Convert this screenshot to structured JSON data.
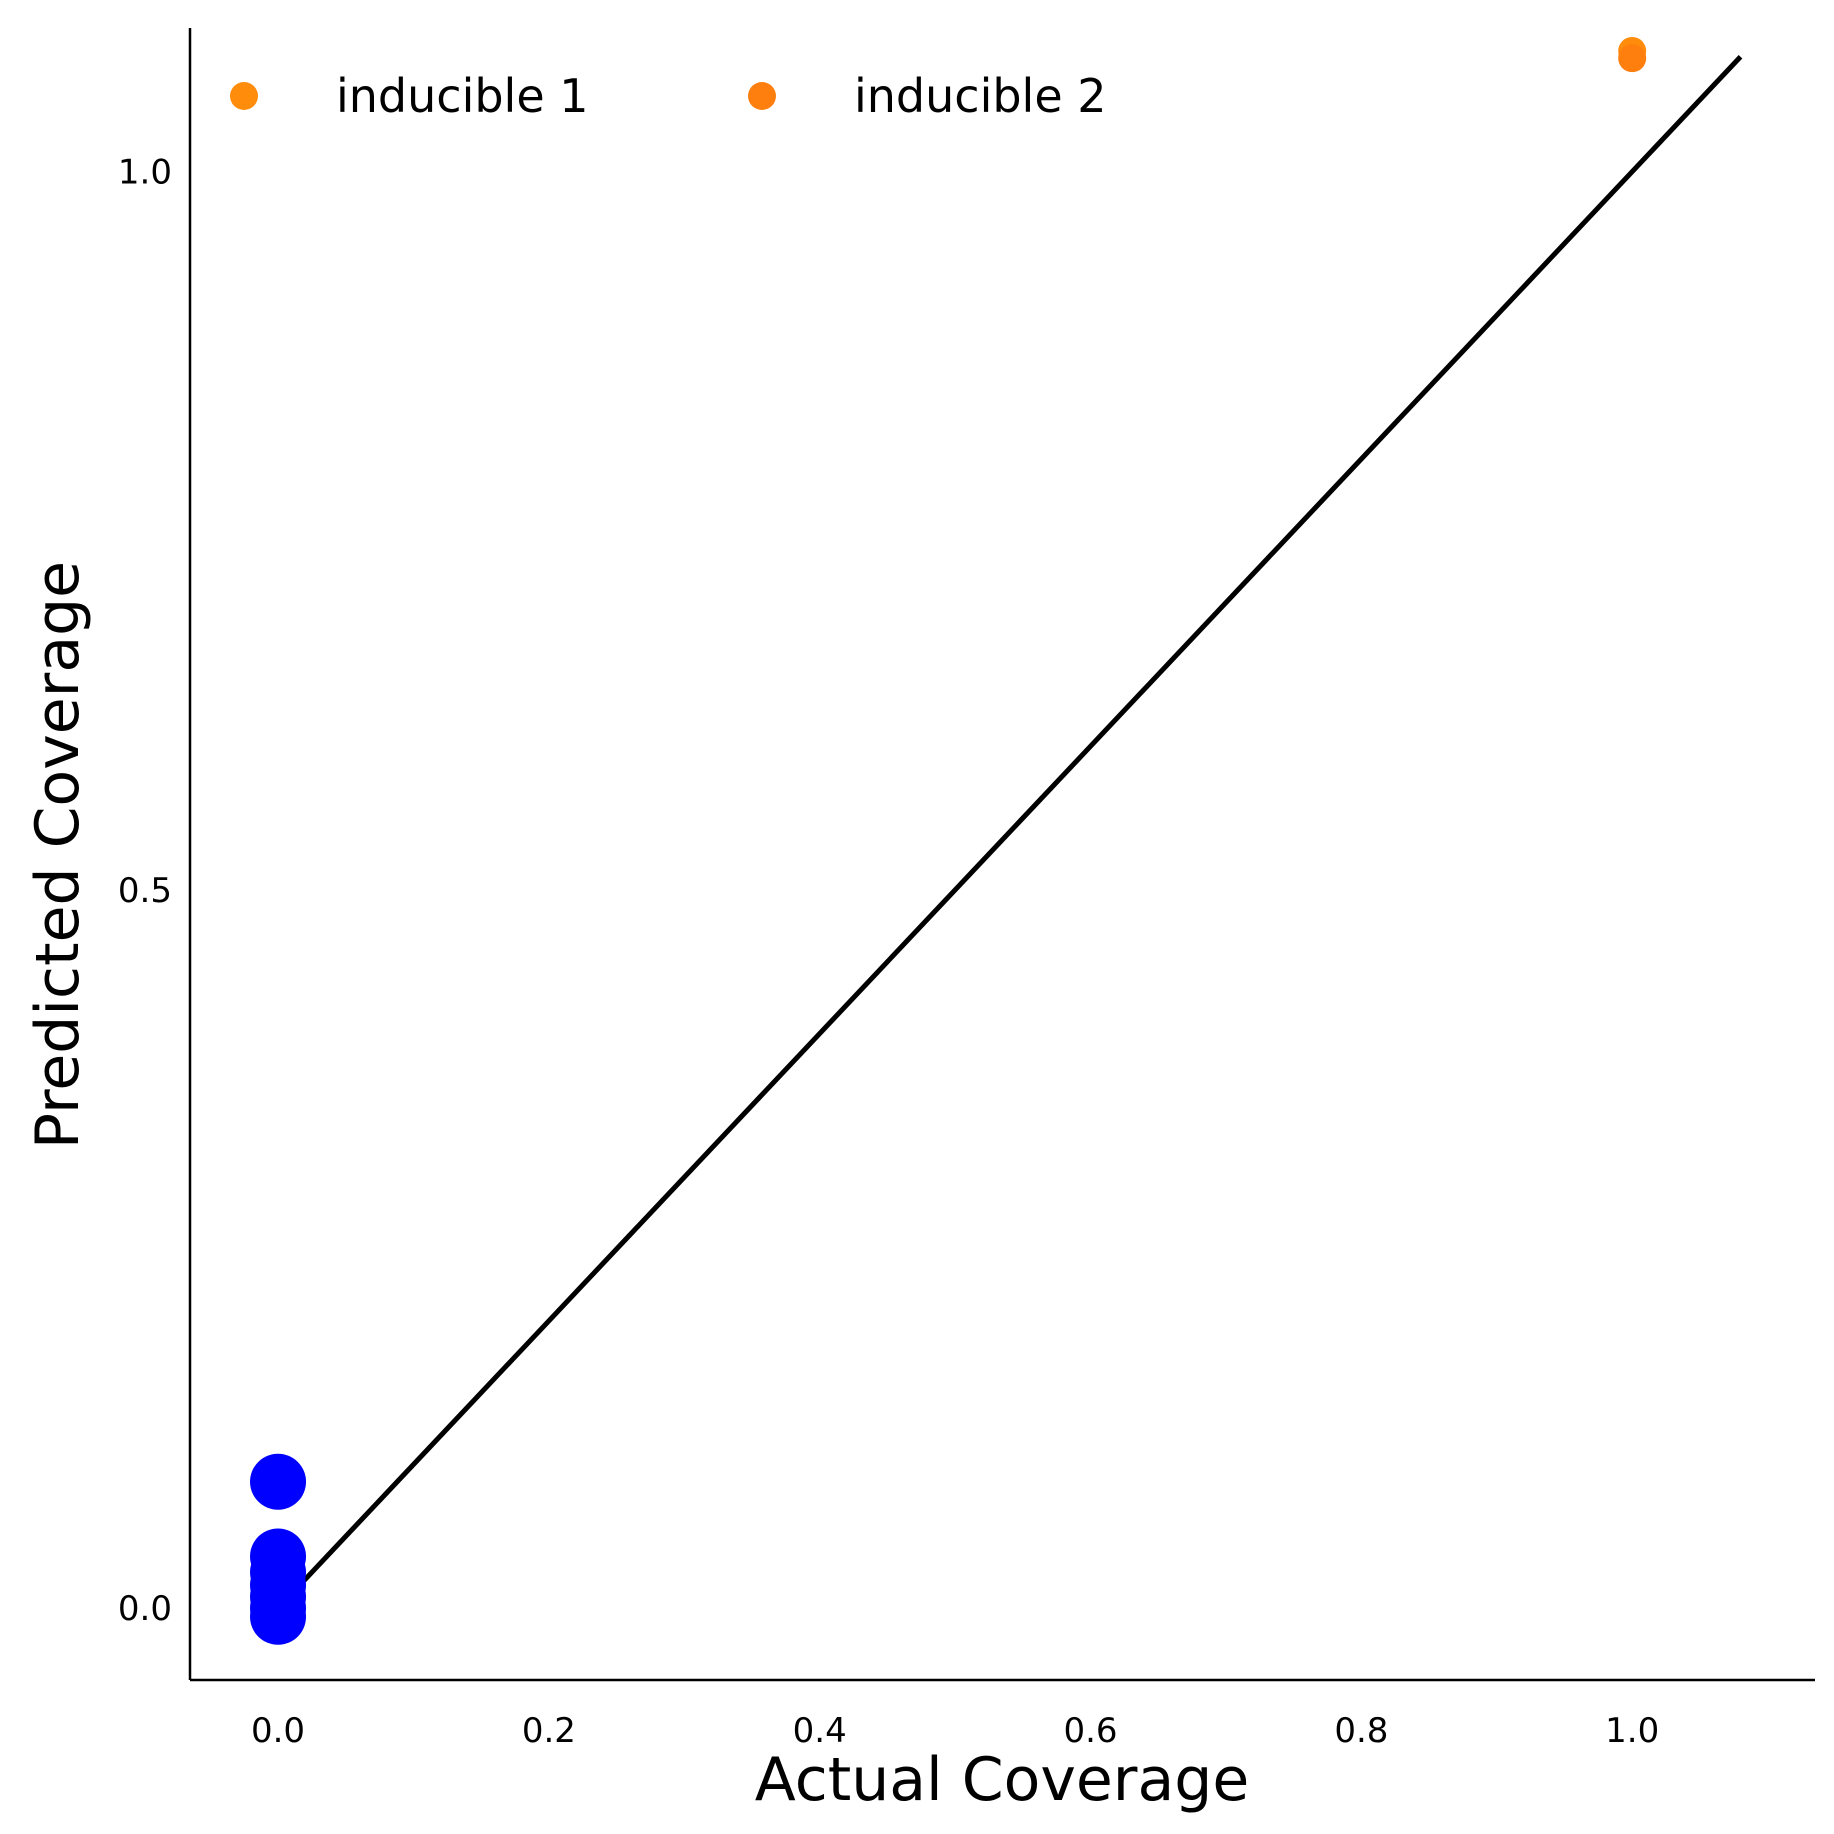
{
  "chart_data": {
    "type": "scatter",
    "xlabel": "Actual Coverage",
    "ylabel": "Predicted Coverage",
    "xlim": [
      -0.065,
      1.135
    ],
    "ylim": [
      -0.05,
      1.1
    ],
    "x_ticks": [
      {
        "value": 0.0,
        "label": "0.0"
      },
      {
        "value": 0.2,
        "label": "0.2"
      },
      {
        "value": 0.4,
        "label": "0.4"
      },
      {
        "value": 0.6,
        "label": "0.6"
      },
      {
        "value": 0.8,
        "label": "0.8"
      },
      {
        "value": 1.0,
        "label": "1.0"
      }
    ],
    "y_ticks": [
      {
        "value": 0.0,
        "label": "0.0"
      },
      {
        "value": 0.5,
        "label": "0.5"
      },
      {
        "value": 1.0,
        "label": "1.0"
      }
    ],
    "grid": false,
    "legend_position": "top-left",
    "reference_line": {
      "x": [
        0.0,
        1.08
      ],
      "y": [
        0.0,
        1.08
      ],
      "color": "#000000"
    },
    "series": [
      {
        "name": "inducible 1",
        "color": "#ff8c0a",
        "points": [
          {
            "x": 1.0,
            "y": 1.084
          }
        ]
      },
      {
        "name": "inducible 2",
        "color": "#ff7f0e",
        "points": [
          {
            "x": 1.0,
            "y": 1.079
          }
        ]
      },
      {
        "color": "#0000ff",
        "points": [
          {
            "x": 0.0,
            "y": 0.088
          },
          {
            "x": 0.0,
            "y": 0.036
          },
          {
            "x": 0.0,
            "y": 0.025
          },
          {
            "x": 0.0,
            "y": 0.016
          },
          {
            "x": 0.0,
            "y": 0.008
          },
          {
            "x": 0.0,
            "y": 0.0
          },
          {
            "x": 0.0,
            "y": -0.006
          }
        ]
      }
    ]
  }
}
